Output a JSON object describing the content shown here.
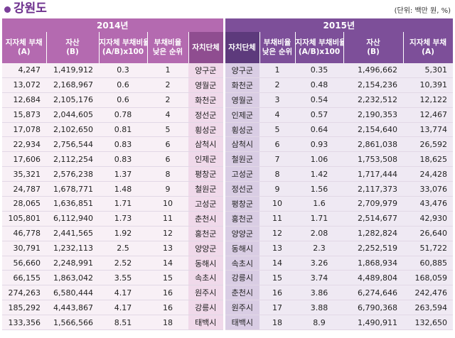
{
  "title": "강원도",
  "unit_note": "(단위: 백만 원, %)",
  "colors": {
    "accent": "#6d2f8d",
    "header2014": "#b46ab0",
    "header2015": "#7d4f99"
  },
  "years": {
    "y2014": "2014년",
    "y2015": "2015년"
  },
  "headers": {
    "h2014": [
      "지자체 부채\n(A)",
      "자산\n(B)",
      "지자체 부채비율\n(A/B)x100",
      "부채비율\n낮은 순위",
      "자치단체"
    ],
    "h2015": [
      "자치단체",
      "부채비율\n낮은 순위",
      "지자체 부채비율\n(A/B)x100",
      "자산\n(B)",
      "지자체 부채\n(A)"
    ]
  },
  "rows": [
    {
      "d14": "4,247",
      "a14": "1,419,912",
      "r14": "0.3",
      "k14": "1",
      "n14": "양구군",
      "n15": "양구군",
      "k15": "1",
      "r15": "0.35",
      "a15": "1,496,662",
      "d15": "5,301"
    },
    {
      "d14": "13,072",
      "a14": "2,168,967",
      "r14": "0.6",
      "k14": "2",
      "n14": "영월군",
      "n15": "화천군",
      "k15": "2",
      "r15": "0.48",
      "a15": "2,154,236",
      "d15": "10,391"
    },
    {
      "d14": "12,684",
      "a14": "2,105,176",
      "r14": "0.6",
      "k14": "2",
      "n14": "화천군",
      "n15": "영월군",
      "k15": "3",
      "r15": "0.54",
      "a15": "2,232,512",
      "d15": "12,122"
    },
    {
      "d14": "15,873",
      "a14": "2,044,605",
      "r14": "0.78",
      "k14": "4",
      "n14": "정선군",
      "n15": "인제군",
      "k15": "4",
      "r15": "0.57",
      "a15": "2,190,353",
      "d15": "12,467"
    },
    {
      "d14": "17,078",
      "a14": "2,102,650",
      "r14": "0.81",
      "k14": "5",
      "n14": "횡성군",
      "n15": "횡성군",
      "k15": "5",
      "r15": "0.64",
      "a15": "2,154,640",
      "d15": "13,774"
    },
    {
      "d14": "22,934",
      "a14": "2,756,544",
      "r14": "0.83",
      "k14": "6",
      "n14": "삼척시",
      "n15": "삼척시",
      "k15": "6",
      "r15": "0.93",
      "a15": "2,861,038",
      "d15": "26,592"
    },
    {
      "d14": "17,606",
      "a14": "2,112,254",
      "r14": "0.83",
      "k14": "6",
      "n14": "인제군",
      "n15": "철원군",
      "k15": "7",
      "r15": "1.06",
      "a15": "1,753,508",
      "d15": "18,625"
    },
    {
      "d14": "35,321",
      "a14": "2,576,238",
      "r14": "1.37",
      "k14": "8",
      "n14": "평창군",
      "n15": "고성군",
      "k15": "8",
      "r15": "1.42",
      "a15": "1,717,444",
      "d15": "24,428"
    },
    {
      "d14": "24,787",
      "a14": "1,678,771",
      "r14": "1.48",
      "k14": "9",
      "n14": "철원군",
      "n15": "정선군",
      "k15": "9",
      "r15": "1.56",
      "a15": "2,117,373",
      "d15": "33,076"
    },
    {
      "d14": "28,065",
      "a14": "1,636,851",
      "r14": "1.71",
      "k14": "10",
      "n14": "고성군",
      "n15": "평창군",
      "k15": "10",
      "r15": "1.6",
      "a15": "2,709,979",
      "d15": "43,476"
    },
    {
      "d14": "105,801",
      "a14": "6,112,940",
      "r14": "1.73",
      "k14": "11",
      "n14": "춘천시",
      "n15": "홍천군",
      "k15": "11",
      "r15": "1.71",
      "a15": "2,514,677",
      "d15": "42,930"
    },
    {
      "d14": "46,778",
      "a14": "2,441,565",
      "r14": "1.92",
      "k14": "12",
      "n14": "홍천군",
      "n15": "양양군",
      "k15": "12",
      "r15": "2.08",
      "a15": "1,282,824",
      "d15": "26,640"
    },
    {
      "d14": "30,791",
      "a14": "1,232,113",
      "r14": "2.5",
      "k14": "13",
      "n14": "양양군",
      "n15": "동해시",
      "k15": "13",
      "r15": "2.3",
      "a15": "2,252,519",
      "d15": "51,722"
    },
    {
      "d14": "56,660",
      "a14": "2,248,991",
      "r14": "2.52",
      "k14": "14",
      "n14": "동해시",
      "n15": "속초시",
      "k15": "14",
      "r15": "3.26",
      "a15": "1,868,934",
      "d15": "60,885"
    },
    {
      "d14": "66,155",
      "a14": "1,863,042",
      "r14": "3.55",
      "k14": "15",
      "n14": "속초시",
      "n15": "강릉시",
      "k15": "15",
      "r15": "3.74",
      "a15": "4,489,804",
      "d15": "168,059"
    },
    {
      "d14": "274,263",
      "a14": "6,580,444",
      "r14": "4.17",
      "k14": "16",
      "n14": "원주시",
      "n15": "춘천시",
      "k15": "16",
      "r15": "3.86",
      "a15": "6,274,646",
      "d15": "242,476"
    },
    {
      "d14": "185,292",
      "a14": "4,443,867",
      "r14": "4.17",
      "k14": "16",
      "n14": "강릉시",
      "n15": "원주시",
      "k15": "17",
      "r15": "3.88",
      "a15": "6,790,368",
      "d15": "263,594"
    },
    {
      "d14": "133,356",
      "a14": "1,566,566",
      "r14": "8.51",
      "k14": "18",
      "n14": "태백시",
      "n15": "태백시",
      "k15": "18",
      "r15": "8.9",
      "a15": "1,490,911",
      "d15": "132,650"
    }
  ]
}
